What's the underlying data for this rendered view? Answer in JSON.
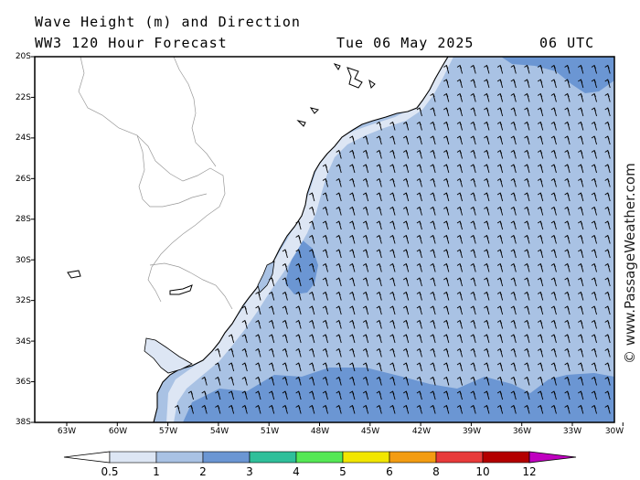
{
  "header": {
    "title": "Wave Height (m) and Direction",
    "subtitle": "WW3 120 Hour Forecast",
    "date": "Tue 06 May 2025",
    "time": "06 UTC"
  },
  "latitude_labels": [
    "20S",
    "22S",
    "24S",
    "26S",
    "28S",
    "30S",
    "32S",
    "34S",
    "36S",
    "38S"
  ],
  "longitude_labels": [
    "63W",
    "60W",
    "57W",
    "54W",
    "51W",
    "48W",
    "45W",
    "42W",
    "39W",
    "36W",
    "33W",
    "30W"
  ],
  "legend": {
    "levels": [
      "0.5",
      "1",
      "2",
      "3",
      "4",
      "5",
      "6",
      "8",
      "10",
      "12"
    ],
    "colors": [
      "#dde6f4",
      "#a9c2e4",
      "#6b96d3",
      "#2fbf9a",
      "#55e855",
      "#f2e600",
      "#f39c12",
      "#e83a3a",
      "#b30000",
      "#c000c0"
    ]
  },
  "wave_field": {
    "dominant_band": "1-2 m",
    "arrow_direction": "from south-southeast",
    "colors": {
      "land": "#ffffff",
      "sea_light": "#dde6f4",
      "sea_1_2": "#a9c2e4",
      "sea_2_3": "#6b96d3"
    }
  },
  "watermark": "© www.PassageWeather.com"
}
